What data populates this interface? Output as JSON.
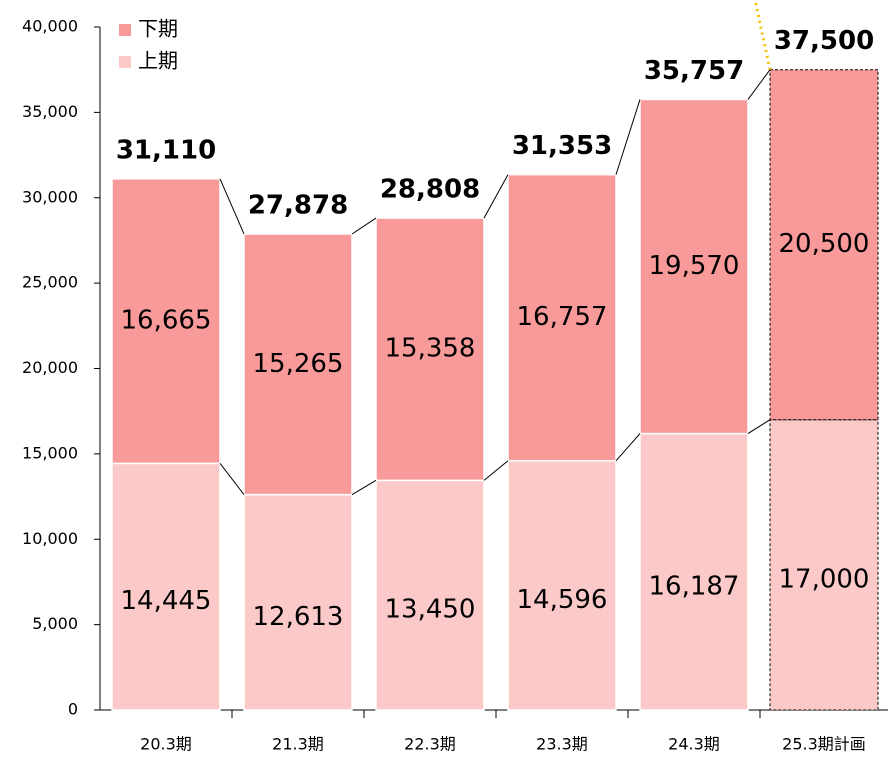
{
  "chart_data": {
    "type": "bar",
    "stacked": true,
    "categories": [
      "20.3期",
      "21.3期",
      "22.3期",
      "23.3期",
      "24.3期",
      "25.3期計画"
    ],
    "series": [
      {
        "name": "上期",
        "color": "#fcc9c9",
        "values": [
          14445,
          12613,
          13450,
          14596,
          16187,
          17000
        ],
        "value_labels": [
          "14,445",
          "12,613",
          "13,450",
          "14,596",
          "16,187",
          "17,000"
        ]
      },
      {
        "name": "下期",
        "color": "#f99a9a",
        "values": [
          16665,
          15265,
          15358,
          16757,
          19570,
          20500
        ],
        "value_labels": [
          "16,665",
          "15,265",
          "15,358",
          "16,757",
          "19,570",
          "20,500"
        ]
      }
    ],
    "totals": [
      31110,
      27878,
      28808,
      31353,
      35757,
      37500
    ],
    "totals_labels": [
      "31,110",
      "27,878",
      "28,808",
      "31,353",
      "35,757",
      "37,500"
    ],
    "ylim": [
      0,
      40000
    ],
    "yticks": [
      0,
      {
        "value": 5000,
        "label": "5,000"
      },
      {
        "value": 10000,
        "label": "10,000"
      },
      {
        "value": 15000,
        "label": "15,000"
      },
      {
        "value": 20000,
        "label": "20,000"
      },
      {
        "value": 25000,
        "label": "25,000"
      },
      {
        "value": 30000,
        "label": "30,000"
      },
      {
        "value": 35000,
        "label": "35,000"
      },
      {
        "value": 40000,
        "label": "40,000"
      }
    ],
    "legend": "top-left"
  }
}
